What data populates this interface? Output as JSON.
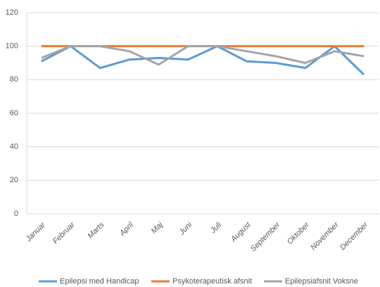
{
  "chart_data": {
    "type": "line",
    "categories": [
      "Januar",
      "Februar",
      "Marts",
      "April",
      "Maj",
      "Juni",
      "Juli",
      "August",
      "September",
      "Oktober",
      "November",
      "December"
    ],
    "series": [
      {
        "name": "Epilepsi med Handicap",
        "color": "#5b9bd5",
        "values": [
          91,
          100,
          87,
          92,
          93,
          92,
          100,
          91,
          90,
          87,
          100,
          83
        ]
      },
      {
        "name": "Psykoterapeutisk afsnit",
        "color": "#ed7d31",
        "values": [
          100,
          100,
          100,
          100,
          100,
          100,
          100,
          100,
          100,
          100,
          100,
          100
        ]
      },
      {
        "name": "Epilepsiafsnit Voksne",
        "color": "#a5a5a5",
        "values": [
          93,
          100,
          100,
          97,
          89,
          100,
          100,
          97,
          94,
          90,
          97,
          94
        ]
      }
    ],
    "ylim": [
      0,
      120
    ],
    "yticks": [
      0,
      20,
      40,
      60,
      80,
      100,
      120
    ],
    "grid": true,
    "legend": "bottom"
  }
}
